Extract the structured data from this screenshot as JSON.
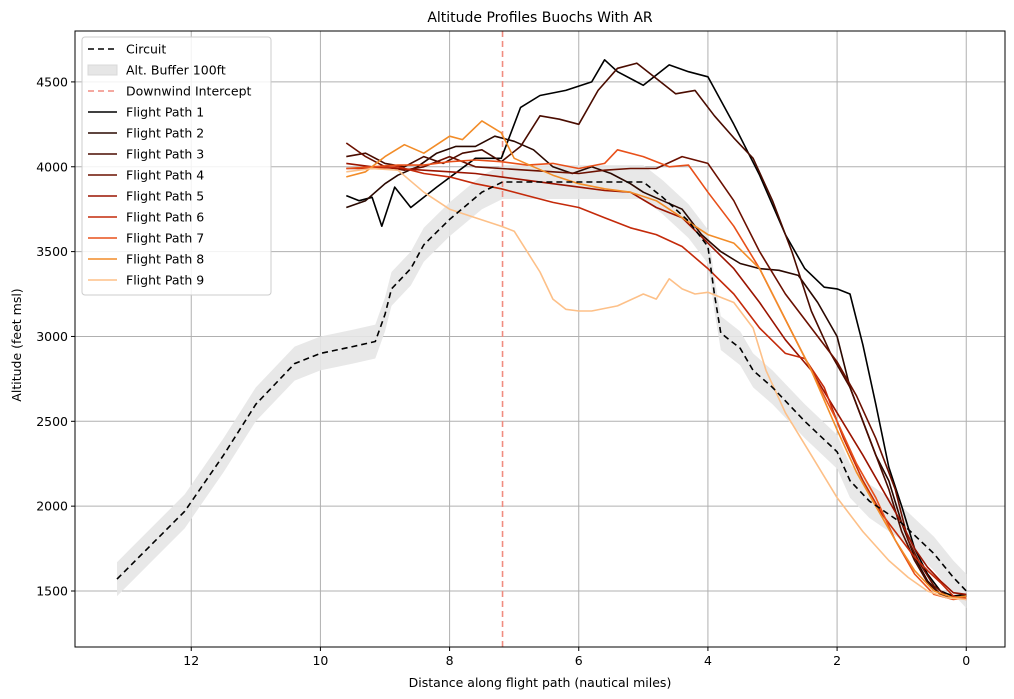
{
  "chart_data": {
    "type": "line",
    "title": "Altitude Profiles Buochs With AR",
    "xlabel": "Distance along flight path (nautical miles)",
    "ylabel": "Altitude (feet msl)",
    "xlim": [
      13.8,
      -0.6
    ],
    "ylim": [
      1170,
      4800
    ],
    "x_inverted": true,
    "grid": true,
    "legend_position": "upper-left",
    "xticks": [
      12,
      10,
      8,
      6,
      4,
      2,
      0
    ],
    "yticks": [
      1500,
      2000,
      2500,
      3000,
      3500,
      4000,
      4500
    ],
    "buffer": {
      "name": "Alt. Buffer 100ft",
      "offset_ft": 100,
      "color": "#e6e6e6"
    },
    "reference_line": {
      "name": "Downwind Intercept",
      "x": 7.18,
      "color": "#f08c80"
    },
    "circuit": {
      "name": "Circuit",
      "color": "#000000",
      "x": [
        13.15,
        12.1,
        11.5,
        11.0,
        10.7,
        10.4,
        10.0,
        9.5,
        9.15,
        9.0,
        8.9,
        8.6,
        8.4,
        8.0,
        7.5,
        7.18,
        7.0,
        6.5,
        6.0,
        5.0,
        4.7,
        4.3,
        4.0,
        3.9,
        3.8,
        3.5,
        3.3,
        3.0,
        2.5,
        2.0,
        1.8,
        1.5,
        1.0,
        0.5,
        0.2,
        0.0
      ],
      "y": [
        1570,
        1970,
        2300,
        2600,
        2720,
        2840,
        2900,
        2940,
        2970,
        3130,
        3280,
        3400,
        3540,
        3690,
        3850,
        3910,
        3910,
        3910,
        3910,
        3910,
        3820,
        3680,
        3530,
        3250,
        3020,
        2930,
        2800,
        2700,
        2500,
        2320,
        2150,
        2030,
        1900,
        1720,
        1580,
        1500
      ]
    },
    "series": [
      {
        "name": "Flight Path 1",
        "color": "#000000",
        "x": [
          9.6,
          9.4,
          9.2,
          9.05,
          8.85,
          8.6,
          8.2,
          7.6,
          7.2,
          6.9,
          6.6,
          6.2,
          5.8,
          5.6,
          5.4,
          5.0,
          4.6,
          4.3,
          4.0,
          3.6,
          3.2,
          2.8,
          2.5,
          2.2,
          2.0,
          1.8,
          1.6,
          1.4,
          1.2,
          1.0,
          0.8,
          0.6,
          0.4,
          0.2,
          0.0
        ],
        "y": [
          3830,
          3800,
          3820,
          3650,
          3880,
          3760,
          3880,
          4050,
          4050,
          4350,
          4420,
          4450,
          4500,
          4630,
          4560,
          4480,
          4600,
          4560,
          4530,
          4250,
          3950,
          3600,
          3400,
          3290,
          3280,
          3250,
          2950,
          2600,
          2230,
          2000,
          1750,
          1600,
          1500,
          1470,
          1480
        ]
      },
      {
        "name": "Flight Path 2",
        "color": "#2a0800",
        "x": [
          9.6,
          9.3,
          9.0,
          8.8,
          8.5,
          8.2,
          7.9,
          7.6,
          7.3,
          7.0,
          6.7,
          6.4,
          6.1,
          5.8,
          5.5,
          5.2,
          5.0,
          4.7,
          4.4,
          4.1,
          3.8,
          3.5,
          3.2,
          2.9,
          2.6,
          2.3,
          2.0,
          1.8,
          1.6,
          1.4,
          1.2,
          1.0,
          0.8,
          0.6,
          0.4,
          0.2,
          0.0
        ],
        "y": [
          3760,
          3800,
          3900,
          3950,
          4000,
          4080,
          4120,
          4120,
          4180,
          4150,
          4100,
          4000,
          3960,
          4000,
          3960,
          3900,
          3850,
          3800,
          3750,
          3600,
          3500,
          3430,
          3400,
          3390,
          3360,
          3200,
          3000,
          2700,
          2500,
          2300,
          2150,
          1900,
          1700,
          1560,
          1480,
          1460,
          1470
        ]
      },
      {
        "name": "Flight Path 3",
        "color": "#4a0c00",
        "x": [
          9.6,
          9.3,
          9.0,
          8.7,
          8.4,
          8.1,
          7.8,
          7.5,
          7.2,
          6.9,
          6.6,
          6.3,
          6.0,
          5.7,
          5.4,
          5.1,
          4.8,
          4.5,
          4.2,
          3.9,
          3.6,
          3.3,
          3.0,
          2.7,
          2.4,
          2.1,
          1.8,
          1.5,
          1.2,
          1.0,
          0.8,
          0.6,
          0.4,
          0.2,
          0.0
        ],
        "y": [
          4060,
          4080,
          4020,
          4000,
          4060,
          4020,
          4080,
          4100,
          4030,
          4120,
          4300,
          4280,
          4250,
          4450,
          4580,
          4610,
          4520,
          4430,
          4450,
          4300,
          4170,
          4050,
          3800,
          3500,
          3150,
          2900,
          2700,
          2400,
          2100,
          1850,
          1680,
          1550,
          1480,
          1460,
          1470
        ]
      },
      {
        "name": "Flight Path 4",
        "color": "#6b1000",
        "x": [
          9.6,
          9.3,
          9.0,
          8.7,
          8.4,
          8.0,
          7.6,
          7.2,
          6.8,
          6.4,
          6.0,
          5.6,
          5.2,
          4.8,
          4.4,
          4.0,
          3.6,
          3.2,
          2.8,
          2.4,
          2.0,
          1.7,
          1.4,
          1.1,
          0.9,
          0.7,
          0.5,
          0.3,
          0.1,
          0.0
        ],
        "y": [
          4140,
          4060,
          4000,
          3980,
          4000,
          4060,
          4000,
          3990,
          3980,
          3970,
          3960,
          3980,
          3990,
          3990,
          4060,
          4020,
          3800,
          3500,
          3250,
          3050,
          2850,
          2650,
          2400,
          2100,
          1800,
          1650,
          1530,
          1470,
          1460,
          1470
        ]
      },
      {
        "name": "Flight Path 5",
        "color": "#9a1400",
        "x": [
          9.6,
          9.2,
          8.8,
          8.4,
          8.0,
          7.6,
          7.2,
          6.8,
          6.4,
          6.0,
          5.6,
          5.2,
          4.8,
          4.4,
          4.0,
          3.6,
          3.2,
          2.8,
          2.4,
          2.0,
          1.6,
          1.3,
          1.0,
          0.8,
          0.6,
          0.4,
          0.2,
          0.0
        ],
        "y": [
          4020,
          4000,
          3990,
          3980,
          3970,
          3960,
          3940,
          3920,
          3900,
          3880,
          3860,
          3850,
          3760,
          3700,
          3550,
          3400,
          3200,
          2980,
          2800,
          2550,
          2300,
          2100,
          1900,
          1750,
          1640,
          1560,
          1490,
          1480
        ]
      },
      {
        "name": "Flight Path 6",
        "color": "#c42a0a",
        "x": [
          9.6,
          9.2,
          8.8,
          8.4,
          8.0,
          7.6,
          7.2,
          6.8,
          6.4,
          6.0,
          5.6,
          5.2,
          4.8,
          4.4,
          4.0,
          3.6,
          3.2,
          2.8,
          2.5,
          2.2,
          1.9,
          1.6,
          1.3,
          1.0,
          0.8,
          0.6,
          0.4,
          0.2,
          0.0
        ],
        "y": [
          3990,
          3990,
          4000,
          3960,
          3940,
          3900,
          3870,
          3830,
          3790,
          3760,
          3700,
          3640,
          3600,
          3530,
          3400,
          3250,
          3050,
          2900,
          2870,
          2700,
          2400,
          2150,
          1950,
          1800,
          1700,
          1620,
          1550,
          1470,
          1450
        ]
      },
      {
        "name": "Flight Path 7",
        "color": "#e8501a",
        "x": [
          9.6,
          9.2,
          8.8,
          8.4,
          8.0,
          7.6,
          7.2,
          6.8,
          6.4,
          6.0,
          5.6,
          5.4,
          5.0,
          4.6,
          4.3,
          4.0,
          3.6,
          3.2,
          2.8,
          2.4,
          2.0,
          1.7,
          1.4,
          1.1,
          0.8,
          0.5,
          0.2,
          0.0
        ],
        "y": [
          3990,
          4000,
          4010,
          4010,
          4030,
          4040,
          4030,
          4010,
          4020,
          3990,
          4020,
          4100,
          4060,
          4000,
          4010,
          3850,
          3650,
          3400,
          3100,
          2800,
          2500,
          2250,
          2050,
          1800,
          1600,
          1480,
          1450,
          1460
        ]
      },
      {
        "name": "Flight Path 8",
        "color": "#f28c28",
        "x": [
          9.6,
          9.3,
          9.0,
          8.7,
          8.4,
          8.0,
          7.8,
          7.5,
          7.2,
          7.0,
          6.7,
          6.4,
          6.0,
          5.6,
          5.2,
          4.8,
          4.4,
          4.0,
          3.6,
          3.2,
          2.8,
          2.4,
          2.0,
          1.7,
          1.4,
          1.1,
          0.8,
          0.5,
          0.2,
          0.0
        ],
        "y": [
          3940,
          3970,
          4060,
          4130,
          4080,
          4180,
          4160,
          4270,
          4200,
          4050,
          4000,
          3950,
          3900,
          3870,
          3850,
          3800,
          3700,
          3600,
          3550,
          3400,
          3100,
          2800,
          2450,
          2200,
          2000,
          1800,
          1620,
          1500,
          1460,
          1470
        ]
      },
      {
        "name": "Flight Path 9",
        "color": "#fdc088",
        "x": [
          9.6,
          9.2,
          8.8,
          8.4,
          8.0,
          7.6,
          7.2,
          7.0,
          6.8,
          6.6,
          6.4,
          6.2,
          6.0,
          5.8,
          5.4,
          5.0,
          4.8,
          4.6,
          4.4,
          4.2,
          4.0,
          3.6,
          3.3,
          3.1,
          2.8,
          2.4,
          2.0,
          1.6,
          1.2,
          0.9,
          0.6,
          0.3,
          0.0
        ],
        "y": [
          3970,
          3990,
          3980,
          3850,
          3750,
          3700,
          3650,
          3620,
          3500,
          3380,
          3220,
          3160,
          3150,
          3150,
          3180,
          3250,
          3220,
          3340,
          3280,
          3250,
          3260,
          3200,
          3050,
          2800,
          2550,
          2300,
          2050,
          1850,
          1680,
          1580,
          1500,
          1460,
          1450
        ]
      }
    ]
  }
}
